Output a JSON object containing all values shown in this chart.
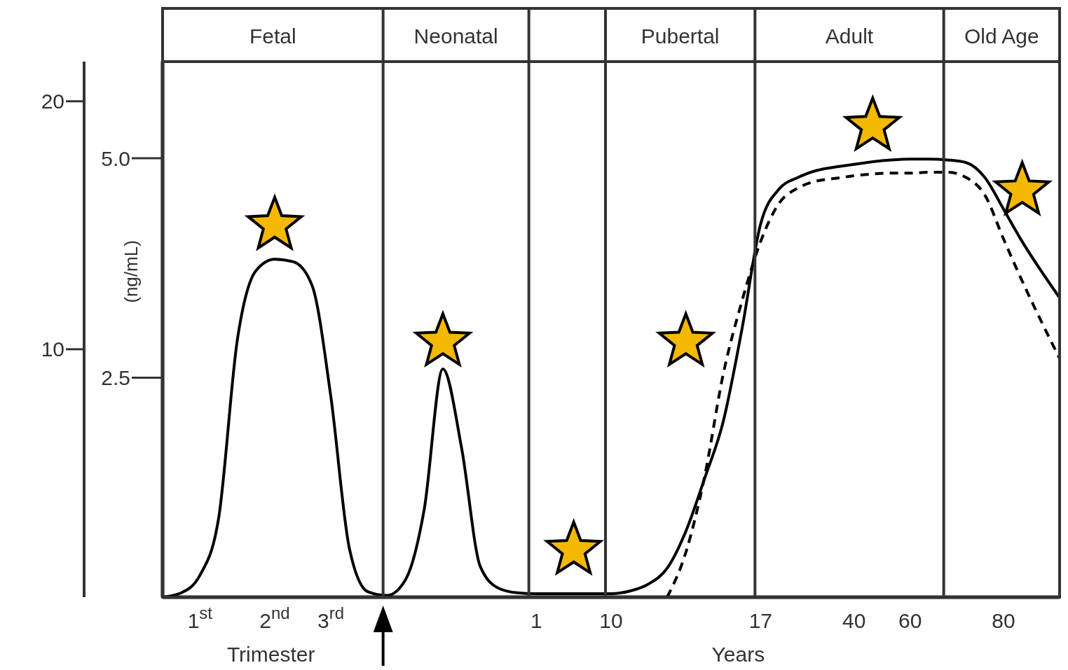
{
  "chart_data": {
    "type": "line",
    "xlabel": "Years",
    "y2label": "(ng/mL)",
    "annotations": [
      "Trimester",
      "Fetal",
      "Neonatal",
      "Pubertal",
      "Adult",
      "Old Age"
    ],
    "categories": [
      null,
      null,
      "1$^{st}$",
      null,
      null,
      null,
      "2$^{nd}$",
      null,
      null,
      "3$^{rd}$",
      null,
      null,
      null,
      null,
      null,
      null,
      null,
      null,
      null,
      null,
      "1",
      null,
      null,
      null,
      "10",
      null,
      null,
      null,
      null,
      null,
      null,
      null,
      "17",
      null,
      null,
      null,
      null,
      "40",
      null,
      null,
      "60",
      null,
      null,
      null,
      null,
      "80",
      null,
      null,
      null
    ],
    "ylim": [
      0,
      21.6
    ],
    "yticks": [
      10,
      20
    ],
    "y2lim": [
      0,
      6.1
    ],
    "y2ticks": [
      2.5,
      {
        "value": 5,
        "label": "5.0"
      }
    ],
    "series": [
      {
        "axis": "y2",
        "color": "#000000",
        "line_style": "solid",
        "values": [
          0,
          0.05,
          0.25,
          0.9,
          2.93,
          3.72,
          3.85,
          3.82,
          3.55,
          2.29,
          0.55,
          0.06,
          0.02,
          0.2,
          1.0,
          2.6,
          1.7,
          0.35,
          0.1,
          0.05,
          0.04,
          0.04,
          0.04,
          0.04,
          0.04,
          0.07,
          0.15,
          0.33,
          0.75,
          1.35,
          2.0,
          3.05,
          4.25,
          4.65,
          4.78,
          4.86,
          4.9,
          4.93,
          4.96,
          4.98,
          4.99,
          4.99,
          4.98,
          4.95,
          4.78,
          4.42,
          4.05,
          3.72,
          3.41
        ]
      },
      {
        "axis": "y2",
        "color": "#000000",
        "line_style": "dashed",
        "values": [
          null,
          null,
          null,
          null,
          null,
          null,
          null,
          null,
          null,
          null,
          null,
          null,
          null,
          null,
          null,
          null,
          null,
          null,
          null,
          null,
          null,
          null,
          null,
          null,
          null,
          null,
          null,
          0,
          0.51,
          1.37,
          2.54,
          3.37,
          4.05,
          4.49,
          4.66,
          4.74,
          4.77,
          4.8,
          4.82,
          4.83,
          4.83,
          4.84,
          4.84,
          4.78,
          4.58,
          4.08,
          3.6,
          3.15,
          2.72
        ]
      },
      {
        "type": "scatter",
        "axis": "y",
        "color": "#f5b800",
        "marker": "star",
        "values": [
          null,
          null,
          null,
          null,
          null,
          null,
          15.0,
          null,
          null,
          null,
          null,
          null,
          null,
          null,
          null,
          10.3,
          null,
          null,
          null,
          null,
          null,
          null,
          1.9,
          null,
          null,
          null,
          null,
          null,
          10.3,
          null,
          null,
          null,
          null,
          null,
          null,
          null,
          null,
          null,
          19.0,
          null,
          null,
          null,
          null,
          null,
          null,
          null,
          16.4,
          null,
          null
        ]
      }
    ]
  }
}
